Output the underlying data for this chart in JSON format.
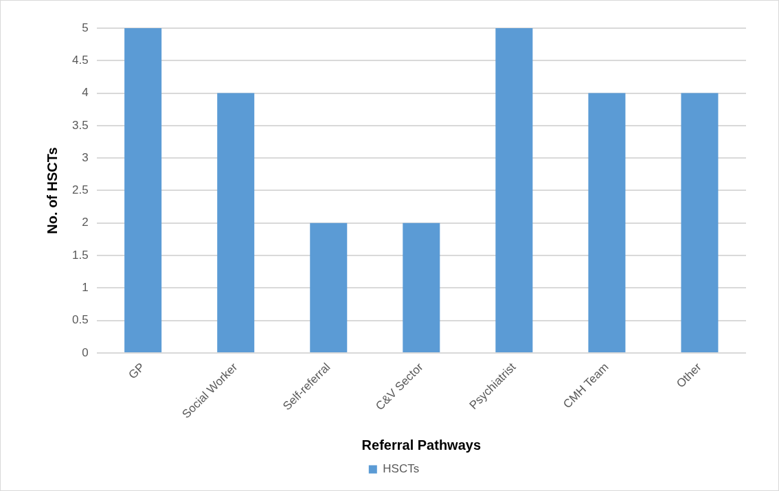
{
  "chart_data": {
    "type": "bar",
    "xlabel": "Referral Pathways",
    "ylabel": "No. of HSCTs",
    "categories": [
      "GP",
      "Social Worker",
      "Self-referral",
      "C&V Sector",
      "Psychiatrist",
      "CMH Team",
      "Other"
    ],
    "series": [
      {
        "name": "HSCTs",
        "color": "#5b9bd5",
        "values": [
          5,
          4,
          2,
          2,
          5,
          4,
          4
        ]
      }
    ],
    "ylim": [
      0,
      5
    ],
    "yticks": [
      0,
      0.5,
      1,
      1.5,
      2,
      2.5,
      3,
      3.5,
      4,
      4.5,
      5
    ],
    "grid": "y",
    "legend": "bottom"
  }
}
